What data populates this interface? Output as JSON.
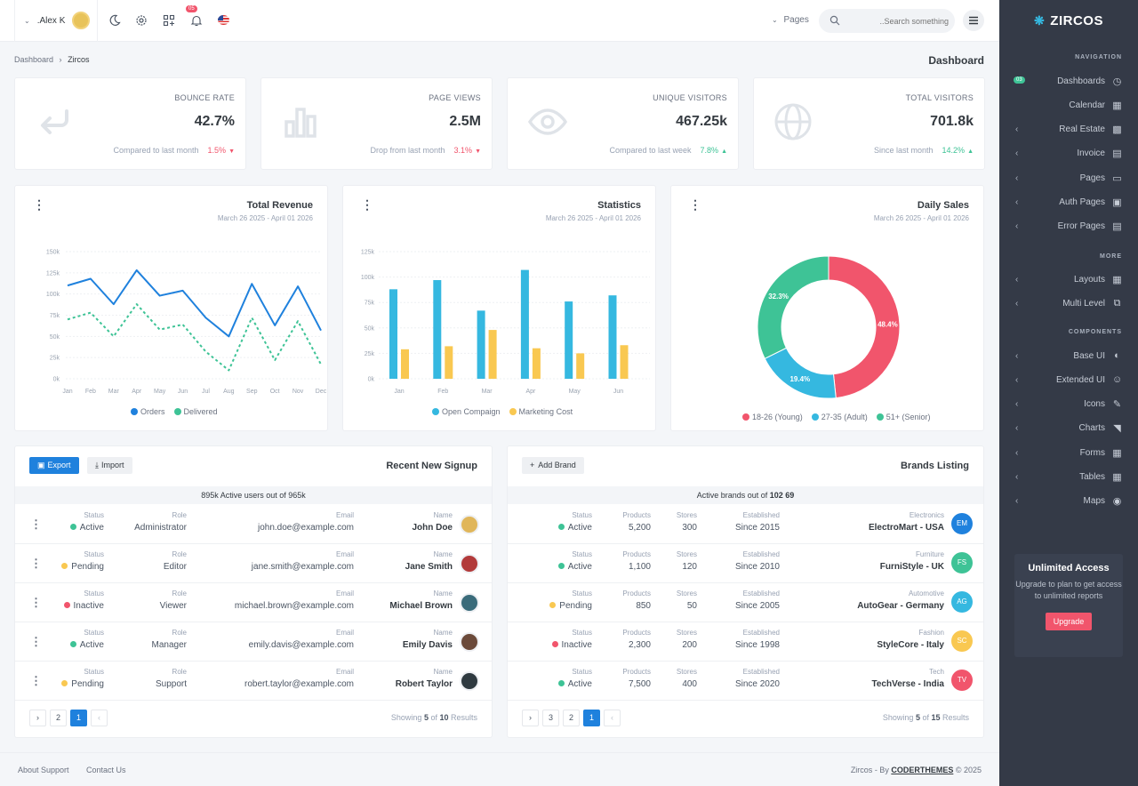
{
  "topbar": {
    "user": ".Alex K",
    "notif_count": "05",
    "pages": "Pages",
    "search_placeholder": "..Search something"
  },
  "breadcrumb": {
    "root": "Dashboard",
    "current": "Zircos"
  },
  "page_title": "Dashboard",
  "stats": [
    {
      "title": "BOUNCE RATE",
      "value": "42.7%",
      "foot": "Compared to last month",
      "delta": "1.5%",
      "dir": "down",
      "color": "#f1556c",
      "icon": "arrow-return-icon"
    },
    {
      "title": "PAGE VIEWS",
      "value": "2.5M",
      "foot": "Drop from last month",
      "delta": "3.1%",
      "dir": "down",
      "color": "#f1556c",
      "icon": "bar-chart-icon"
    },
    {
      "title": "UNIQUE VISITORS",
      "value": "467.25k",
      "foot": "Compared to last week",
      "delta": "7.8%",
      "dir": "up",
      "color": "#3ec396",
      "icon": "eye-icon"
    },
    {
      "title": "TOTAL VISITORS",
      "value": "701.8k",
      "foot": "Since last month",
      "delta": "14.2%",
      "dir": "up",
      "color": "#3ec396",
      "icon": "globe-icon"
    }
  ],
  "charts": {
    "revenue": {
      "title": "Total Revenue",
      "date": "March 26 2025 - April 01 2026"
    },
    "statistics": {
      "title": "Statistics",
      "date": "March 26 2025 - April 01 2026"
    },
    "daily": {
      "title": "Daily Sales",
      "date": "March 26 2025 - April 01 2026"
    }
  },
  "chart_data": [
    {
      "type": "line",
      "title": "Total Revenue",
      "categories": [
        "Jan",
        "Feb",
        "Mar",
        "Apr",
        "May",
        "Jun",
        "Jul",
        "Aug",
        "Sep",
        "Oct",
        "Nov",
        "Dec"
      ],
      "ylim": [
        0,
        150000
      ],
      "yticks": [
        "0k",
        "25k",
        "50k",
        "75k",
        "100k",
        "125k",
        "150k"
      ],
      "series": [
        {
          "name": "Orders",
          "color": "#1f81dd",
          "values": [
            110000,
            118000,
            88000,
            128000,
            98000,
            104000,
            72000,
            50000,
            112000,
            63000,
            109000,
            57000
          ]
        },
        {
          "name": "Delivered",
          "color": "#3ec396",
          "values": [
            70000,
            78000,
            50000,
            88000,
            58000,
            64000,
            32000,
            10000,
            72000,
            22000,
            68000,
            17000
          ]
        }
      ],
      "legend": "bottom"
    },
    {
      "type": "bar",
      "title": "Statistics",
      "categories": [
        "Jan",
        "Feb",
        "Mar",
        "Apr",
        "May",
        "Jun"
      ],
      "ylim": [
        0,
        125000
      ],
      "yticks": [
        "0k",
        "25k",
        "50k",
        "75k",
        "100k",
        "125k"
      ],
      "series": [
        {
          "name": "Open Compaign",
          "color": "#35b8e0",
          "values": [
            88000,
            97000,
            67000,
            107000,
            76000,
            82000
          ]
        },
        {
          "name": "Marketing Cost",
          "color": "#f9c851",
          "values": [
            29000,
            32000,
            48000,
            30000,
            25000,
            33000
          ]
        }
      ],
      "legend": "bottom"
    },
    {
      "type": "pie",
      "title": "Daily Sales",
      "labels": [
        "18-26 (Young)",
        "27-35 (Adult)",
        "51+ (Senior)"
      ],
      "values": [
        48.4,
        19.4,
        32.3
      ],
      "value_labels": [
        "48.4%",
        "19.4%",
        "32.3%"
      ],
      "colors": [
        "#f1556c",
        "#35b8e0",
        "#3ec396"
      ],
      "legend": "bottom"
    }
  ],
  "signup": {
    "title": "Recent New Signup",
    "export": "Export",
    "import": "Import",
    "summary": "895k Active users out of 965k",
    "headers": {
      "status": "Status",
      "role": "Role",
      "email": "Email",
      "name": "Name"
    },
    "rows": [
      {
        "status": "Active",
        "status_color": "#3ec396",
        "role": "Administrator",
        "email": "john.doe@example.com",
        "name": "John Doe",
        "avatar": "#e0b65a"
      },
      {
        "status": "Pending",
        "status_color": "#f9c851",
        "role": "Editor",
        "email": "jane.smith@example.com",
        "name": "Jane Smith",
        "avatar": "#b23a3a"
      },
      {
        "status": "Inactive",
        "status_color": "#f1556c",
        "role": "Viewer",
        "email": "michael.brown@example.com",
        "name": "Michael Brown",
        "avatar": "#3a6b7a"
      },
      {
        "status": "Active",
        "status_color": "#3ec396",
        "role": "Manager",
        "email": "emily.davis@example.com",
        "name": "Emily Davis",
        "avatar": "#6b4a3a"
      },
      {
        "status": "Pending",
        "status_color": "#f9c851",
        "role": "Support",
        "email": "robert.taylor@example.com",
        "name": "Robert Taylor",
        "avatar": "#2f3a40"
      }
    ],
    "pages": [
      "2",
      "1"
    ],
    "showing_pre": "Showing ",
    "showing_n": "5",
    "showing_of": " of ",
    "showing_total": "10",
    "showing_post": " Results"
  },
  "brands": {
    "title": "Brands Listing",
    "add": "Add Brand",
    "summary_pre": "Active brands out of ",
    "summary_n": "102 69",
    "headers": {
      "status": "Status",
      "products": "Products",
      "stores": "Stores",
      "established": "Established"
    },
    "rows": [
      {
        "status": "Active",
        "status_color": "#3ec396",
        "products": "5,200",
        "stores": "300",
        "established": "Since 2015",
        "category": "Electronics",
        "name": "ElectroMart - USA",
        "initials": "EM",
        "color": "#1f81dd"
      },
      {
        "status": "Active",
        "status_color": "#3ec396",
        "products": "1,100",
        "stores": "120",
        "established": "Since 2010",
        "category": "Furniture",
        "name": "FurniStyle - UK",
        "initials": "FS",
        "color": "#3ec396"
      },
      {
        "status": "Pending",
        "status_color": "#f9c851",
        "products": "850",
        "stores": "50",
        "established": "Since 2005",
        "category": "Automotive",
        "name": "AutoGear - Germany",
        "initials": "AG",
        "color": "#35b8e0"
      },
      {
        "status": "Inactive",
        "status_color": "#f1556c",
        "products": "2,300",
        "stores": "200",
        "established": "Since 1998",
        "category": "Fashion",
        "name": "StyleCore - Italy",
        "initials": "SC",
        "color": "#f9c851"
      },
      {
        "status": "Active",
        "status_color": "#3ec396",
        "products": "7,500",
        "stores": "400",
        "established": "Since 2020",
        "category": "Tech",
        "name": "TechVerse - India",
        "initials": "TV",
        "color": "#f1556c"
      }
    ],
    "pages": [
      "3",
      "2",
      "1"
    ],
    "showing_pre": "Showing ",
    "showing_n": "5",
    "showing_of": " of ",
    "showing_total": "15",
    "showing_post": " Results"
  },
  "sidebar": {
    "brand": "ZIRCOS",
    "navigation": "NAVIGATION",
    "more": "MORE",
    "components": "COMPONENTS",
    "badge": "03",
    "nav": [
      {
        "label": "Dashboards",
        "icon": "dashboard-icon"
      },
      {
        "label": "Calendar",
        "icon": "calendar-icon"
      },
      {
        "label": "Real Estate",
        "icon": "building-icon"
      },
      {
        "label": "Invoice",
        "icon": "invoice-icon"
      },
      {
        "label": "Pages",
        "icon": "file-icon"
      },
      {
        "label": "Auth Pages",
        "icon": "lock-icon"
      },
      {
        "label": "Error Pages",
        "icon": "server-icon"
      }
    ],
    "more_items": [
      {
        "label": "Layouts",
        "icon": "layouts-icon"
      },
      {
        "label": "Multi Level",
        "icon": "stack-icon"
      }
    ],
    "comp_items": [
      {
        "label": "Base UI",
        "icon": "palette-icon"
      },
      {
        "label": "Extended UI",
        "icon": "smile-icon"
      },
      {
        "label": "Icons",
        "icon": "brush-icon"
      },
      {
        "label": "Charts",
        "icon": "chart-icon"
      },
      {
        "label": "Forms",
        "icon": "forms-icon"
      },
      {
        "label": "Tables",
        "icon": "table-icon"
      },
      {
        "label": "Maps",
        "icon": "map-pin-icon"
      }
    ],
    "upgrade": {
      "title": "Unlimited Access",
      "text": "Upgrade to plan to get access to unlimited reports",
      "button": "Upgrade"
    }
  },
  "footer": {
    "about": "About Support",
    "contact": "Contact Us",
    "copy_pre": "Zircos - By ",
    "copy_brand": "CODERTHEMES",
    "copy_post": " © 2025"
  }
}
